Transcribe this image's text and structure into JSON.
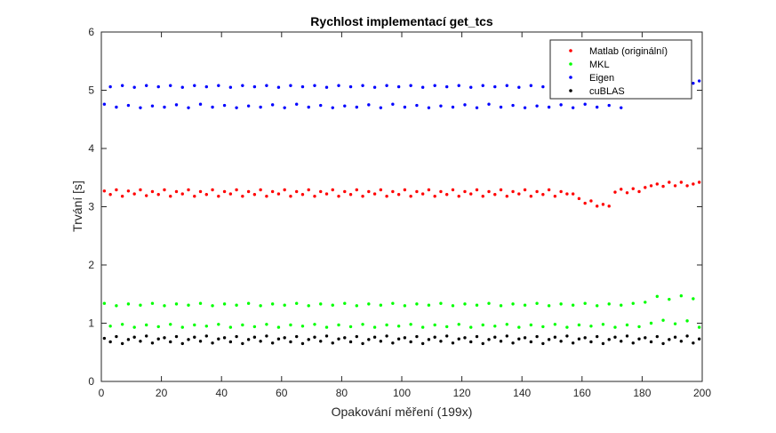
{
  "chart_data": {
    "type": "scatter",
    "title": "Rychlost implementací get_tcs",
    "xlabel": "Opakování měření (199x)",
    "ylabel": "Trvání [s]",
    "xlim": [
      0,
      200
    ],
    "ylim": [
      0,
      6
    ],
    "xticks": [
      0,
      20,
      40,
      60,
      80,
      100,
      120,
      140,
      160,
      180,
      200
    ],
    "yticks": [
      0,
      1,
      2,
      3,
      4,
      5,
      6
    ],
    "grid": false,
    "legend_position": "top-right",
    "series": [
      {
        "name": "Matlab (originální)",
        "color": "#ff0000",
        "sample_every": 2,
        "x": [
          1,
          3,
          5,
          7,
          9,
          11,
          13,
          15,
          17,
          19,
          21,
          23,
          25,
          27,
          29,
          31,
          33,
          35,
          37,
          39,
          41,
          43,
          45,
          47,
          49,
          51,
          53,
          55,
          57,
          59,
          61,
          63,
          65,
          67,
          69,
          71,
          73,
          75,
          77,
          79,
          81,
          83,
          85,
          87,
          89,
          91,
          93,
          95,
          97,
          99,
          101,
          103,
          105,
          107,
          109,
          111,
          113,
          115,
          117,
          119,
          121,
          123,
          125,
          127,
          129,
          131,
          133,
          135,
          137,
          139,
          141,
          143,
          145,
          147,
          149,
          151,
          153,
          155,
          157,
          159,
          161,
          163,
          165,
          167,
          169,
          171,
          173,
          175,
          177,
          179,
          181,
          183,
          185,
          187,
          189,
          191,
          193,
          195,
          197,
          199
        ],
        "y": [
          3.27,
          3.21,
          3.29,
          3.18,
          3.27,
          3.22,
          3.29,
          3.19,
          3.26,
          3.21,
          3.29,
          3.18,
          3.26,
          3.22,
          3.29,
          3.18,
          3.26,
          3.21,
          3.29,
          3.18,
          3.26,
          3.22,
          3.29,
          3.18,
          3.26,
          3.21,
          3.29,
          3.18,
          3.26,
          3.22,
          3.29,
          3.18,
          3.26,
          3.21,
          3.29,
          3.18,
          3.26,
          3.22,
          3.29,
          3.18,
          3.26,
          3.21,
          3.29,
          3.18,
          3.26,
          3.22,
          3.29,
          3.18,
          3.26,
          3.21,
          3.29,
          3.18,
          3.26,
          3.22,
          3.29,
          3.18,
          3.26,
          3.21,
          3.29,
          3.18,
          3.26,
          3.22,
          3.29,
          3.18,
          3.26,
          3.21,
          3.29,
          3.18,
          3.26,
          3.22,
          3.29,
          3.18,
          3.26,
          3.21,
          3.29,
          3.18,
          3.26,
          3.22,
          3.22,
          3.14,
          3.06,
          3.1,
          3.01,
          3.04,
          3.01,
          3.25,
          3.3,
          3.24,
          3.31,
          3.26,
          3.33,
          3.36,
          3.39,
          3.35,
          3.42,
          3.36,
          3.42,
          3.36,
          3.39,
          3.42
        ]
      },
      {
        "name": "MKL",
        "color": "#00ff00",
        "sample_every": 2,
        "x": [
          1,
          3,
          5,
          7,
          9,
          11,
          13,
          15,
          17,
          19,
          21,
          23,
          25,
          27,
          29,
          31,
          33,
          35,
          37,
          39,
          41,
          43,
          45,
          47,
          49,
          51,
          53,
          55,
          57,
          59,
          61,
          63,
          65,
          67,
          69,
          71,
          73,
          75,
          77,
          79,
          81,
          83,
          85,
          87,
          89,
          91,
          93,
          95,
          97,
          99,
          101,
          103,
          105,
          107,
          109,
          111,
          113,
          115,
          117,
          119,
          121,
          123,
          125,
          127,
          129,
          131,
          133,
          135,
          137,
          139,
          141,
          143,
          145,
          147,
          149,
          151,
          153,
          155,
          157,
          159,
          161,
          163,
          165,
          167,
          169,
          171,
          173,
          175,
          177,
          179,
          181,
          183,
          185,
          187,
          189,
          191,
          193,
          195,
          197,
          199
        ],
        "y": [
          1.34,
          0.95,
          1.3,
          0.98,
          1.33,
          0.93,
          1.31,
          0.97,
          1.34,
          0.94,
          1.3,
          0.98,
          1.33,
          0.93,
          1.31,
          0.97,
          1.34,
          0.95,
          1.3,
          0.98,
          1.33,
          0.93,
          1.31,
          0.97,
          1.34,
          0.94,
          1.3,
          0.98,
          1.33,
          0.93,
          1.31,
          0.97,
          1.34,
          0.95,
          1.3,
          0.98,
          1.33,
          0.93,
          1.31,
          0.97,
          1.34,
          0.94,
          1.3,
          0.98,
          1.33,
          0.93,
          1.31,
          0.97,
          1.34,
          0.95,
          1.3,
          0.98,
          1.33,
          0.93,
          1.31,
          0.97,
          1.34,
          0.94,
          1.3,
          0.98,
          1.33,
          0.93,
          1.31,
          0.97,
          1.34,
          0.95,
          1.3,
          0.98,
          1.33,
          0.93,
          1.31,
          0.97,
          1.34,
          0.94,
          1.3,
          0.98,
          1.33,
          0.93,
          1.31,
          0.97,
          1.34,
          0.95,
          1.3,
          0.98,
          1.33,
          0.93,
          1.31,
          0.97,
          1.34,
          0.94,
          1.36,
          1.0,
          1.46,
          1.05,
          1.41,
          0.99,
          1.47,
          1.04,
          1.42,
          0.93
        ]
      },
      {
        "name": "Eigen",
        "color": "#0000ff",
        "sample_every": 2,
        "x": [
          1,
          3,
          5,
          7,
          9,
          11,
          13,
          15,
          17,
          19,
          21,
          23,
          25,
          27,
          29,
          31,
          33,
          35,
          37,
          39,
          41,
          43,
          45,
          47,
          49,
          51,
          53,
          55,
          57,
          59,
          61,
          63,
          65,
          67,
          69,
          71,
          73,
          75,
          77,
          79,
          81,
          83,
          85,
          87,
          89,
          91,
          93,
          95,
          97,
          99,
          101,
          103,
          105,
          107,
          109,
          111,
          113,
          115,
          117,
          119,
          121,
          123,
          125,
          127,
          129,
          131,
          133,
          135,
          137,
          139,
          141,
          143,
          145,
          147,
          149,
          151,
          153,
          155,
          157,
          159,
          161,
          163,
          165,
          167,
          169,
          171,
          173,
          175,
          177,
          179,
          181,
          183,
          185,
          187,
          189,
          191,
          193,
          195,
          197,
          199
        ],
        "y": [
          4.76,
          5.06,
          4.71,
          5.08,
          4.74,
          5.05,
          4.7,
          5.08,
          4.73,
          5.06,
          4.71,
          5.08,
          4.75,
          5.05,
          4.7,
          5.08,
          4.76,
          5.06,
          4.71,
          5.08,
          4.74,
          5.05,
          4.7,
          5.08,
          4.73,
          5.06,
          4.71,
          5.08,
          4.75,
          5.05,
          4.7,
          5.08,
          4.76,
          5.06,
          4.71,
          5.08,
          4.74,
          5.05,
          4.7,
          5.08,
          4.73,
          5.06,
          4.71,
          5.08,
          4.75,
          5.05,
          4.7,
          5.08,
          4.76,
          5.06,
          4.71,
          5.08,
          4.74,
          5.05,
          4.7,
          5.08,
          4.73,
          5.06,
          4.71,
          5.08,
          4.75,
          5.05,
          4.7,
          5.08,
          4.76,
          5.06,
          4.71,
          5.08,
          4.74,
          5.05,
          4.7,
          5.08,
          4.73,
          5.06,
          4.71,
          5.08,
          4.75,
          5.05,
          4.7,
          5.08,
          4.76,
          5.06,
          4.71,
          5.08,
          4.74,
          5.05,
          4.7,
          5.08,
          5.08,
          5.13,
          5.1,
          5.12,
          5.14,
          5.11,
          5.15,
          5.12,
          5.1,
          5.14,
          5.12,
          5.16
        ]
      },
      {
        "name": "cuBLAS",
        "color": "#000000",
        "sample_every": 2,
        "x": [
          1,
          3,
          5,
          7,
          9,
          11,
          13,
          15,
          17,
          19,
          21,
          23,
          25,
          27,
          29,
          31,
          33,
          35,
          37,
          39,
          41,
          43,
          45,
          47,
          49,
          51,
          53,
          55,
          57,
          59,
          61,
          63,
          65,
          67,
          69,
          71,
          73,
          75,
          77,
          79,
          81,
          83,
          85,
          87,
          89,
          91,
          93,
          95,
          97,
          99,
          101,
          103,
          105,
          107,
          109,
          111,
          113,
          115,
          117,
          119,
          121,
          123,
          125,
          127,
          129,
          131,
          133,
          135,
          137,
          139,
          141,
          143,
          145,
          147,
          149,
          151,
          153,
          155,
          157,
          159,
          161,
          163,
          165,
          167,
          169,
          171,
          173,
          175,
          177,
          179,
          181,
          183,
          185,
          187,
          189,
          191,
          193,
          195,
          197,
          199
        ],
        "y": [
          0.74,
          0.68,
          0.77,
          0.65,
          0.72,
          0.76,
          0.69,
          0.78,
          0.66,
          0.73,
          0.75,
          0.68,
          0.77,
          0.65,
          0.72,
          0.76,
          0.69,
          0.78,
          0.66,
          0.73,
          0.75,
          0.68,
          0.77,
          0.65,
          0.72,
          0.76,
          0.69,
          0.78,
          0.66,
          0.73,
          0.75,
          0.68,
          0.77,
          0.65,
          0.72,
          0.76,
          0.69,
          0.78,
          0.66,
          0.73,
          0.75,
          0.68,
          0.77,
          0.65,
          0.72,
          0.76,
          0.69,
          0.78,
          0.66,
          0.73,
          0.75,
          0.68,
          0.77,
          0.65,
          0.72,
          0.76,
          0.69,
          0.78,
          0.66,
          0.73,
          0.75,
          0.68,
          0.77,
          0.65,
          0.72,
          0.76,
          0.69,
          0.78,
          0.66,
          0.73,
          0.75,
          0.68,
          0.77,
          0.65,
          0.72,
          0.76,
          0.69,
          0.78,
          0.66,
          0.73,
          0.75,
          0.68,
          0.77,
          0.65,
          0.72,
          0.76,
          0.69,
          0.78,
          0.66,
          0.73,
          0.75,
          0.68,
          0.77,
          0.65,
          0.72,
          0.76,
          0.69,
          0.78,
          0.66,
          0.73
        ]
      }
    ]
  }
}
